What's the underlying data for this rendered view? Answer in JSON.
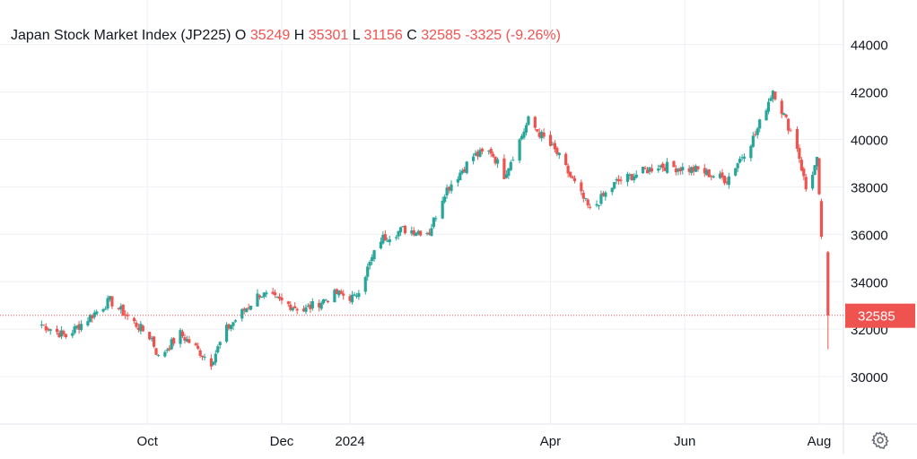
{
  "legend": {
    "symbol": "Japan Stock Market Index (JP225)",
    "open_key": "O",
    "open": "35249",
    "high_key": "H",
    "high": "35301",
    "low_key": "L",
    "low": "31156",
    "close_key": "C",
    "close": "32585",
    "change": "-3325 (-9.26%)"
  },
  "price_tag": "32585",
  "colors": {
    "up": "#26a69a",
    "down": "#ef5350",
    "grid": "#f0f3fa",
    "text": "#131722",
    "price_line": "#ef5350"
  },
  "icons": {
    "settings": "gear-icon"
  },
  "chart_data": {
    "type": "candlestick",
    "x_ticks": [
      "Oct",
      "Dec",
      "2024",
      "Apr",
      "Jun",
      "Aug"
    ],
    "y_ticks": [
      "30000",
      "32000",
      "34000",
      "36000",
      "38000",
      "40000",
      "42000",
      "44000"
    ],
    "ylim": [
      28000,
      45500
    ],
    "grid": true,
    "current_price": 32585,
    "y_axis_position": "right",
    "close_path": [
      {
        "x": "2023-08-14",
        "y": 32200
      },
      {
        "x": "2023-08-25",
        "y": 31700
      },
      {
        "x": "2023-09-14",
        "y": 33200
      },
      {
        "x": "2023-10-03",
        "y": 31600
      },
      {
        "x": "2023-10-06",
        "y": 30800
      },
      {
        "x": "2023-10-16",
        "y": 31800
      },
      {
        "x": "2023-10-30",
        "y": 30600
      },
      {
        "x": "2023-11-06",
        "y": 32000
      },
      {
        "x": "2023-11-21",
        "y": 33500
      },
      {
        "x": "2023-12-11",
        "y": 32800
      },
      {
        "x": "2023-12-26",
        "y": 33500
      },
      {
        "x": "2024-01-03",
        "y": 33300
      },
      {
        "x": "2024-01-15",
        "y": 35800
      },
      {
        "x": "2024-01-25",
        "y": 36200
      },
      {
        "x": "2024-02-06",
        "y": 36100
      },
      {
        "x": "2024-02-13",
        "y": 37800
      },
      {
        "x": "2024-02-26",
        "y": 39300
      },
      {
        "x": "2024-03-05",
        "y": 39500
      },
      {
        "x": "2024-03-11",
        "y": 38500
      },
      {
        "x": "2024-03-22",
        "y": 40800
      },
      {
        "x": "2024-04-04",
        "y": 39400
      },
      {
        "x": "2024-04-19",
        "y": 37000
      },
      {
        "x": "2024-05-01",
        "y": 38200
      },
      {
        "x": "2024-05-20",
        "y": 38900
      },
      {
        "x": "2024-06-07",
        "y": 38700
      },
      {
        "x": "2024-06-20",
        "y": 38300
      },
      {
        "x": "2024-07-03",
        "y": 40200
      },
      {
        "x": "2024-07-11",
        "y": 42100
      },
      {
        "x": "2024-07-22",
        "y": 39700
      },
      {
        "x": "2024-07-26",
        "y": 37900
      },
      {
        "x": "2024-07-31",
        "y": 39100
      },
      {
        "x": "2024-08-02",
        "y": 35900
      },
      {
        "x": "2024-08-05",
        "y": 32585
      }
    ],
    "last_candle": {
      "x": "2024-08-05",
      "open": 35249,
      "high": 35301,
      "low": 31156,
      "close": 32585
    },
    "previous_candle": {
      "x": "2024-08-02",
      "open": 37400,
      "high": 37500,
      "low": 35800,
      "close": 35900
    }
  }
}
